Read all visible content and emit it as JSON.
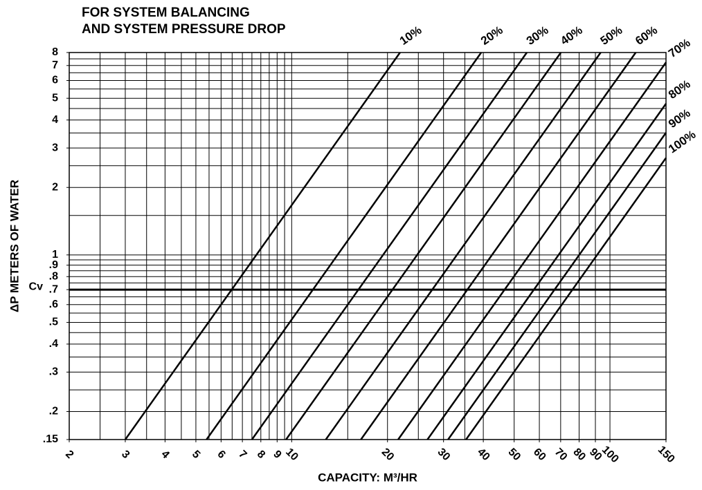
{
  "chart_data": {
    "type": "line",
    "title": [
      "FOR SYSTEM BALANCING",
      "AND SYSTEM PRESSURE DROP"
    ],
    "x_label": "CAPACITY: M³/HR",
    "y_label": "ΔP METERS OF WATER",
    "xscale": "log",
    "yscale": "log",
    "xlim": [
      2,
      150
    ],
    "ylim": [
      0.15,
      8
    ],
    "xticks": [
      2,
      3,
      4,
      5,
      6,
      7,
      8,
      9,
      10,
      20,
      30,
      40,
      50,
      60,
      70,
      80,
      90,
      100,
      150
    ],
    "yticks": [
      {
        "value": 0.15,
        "label": ".15"
      },
      {
        "value": 0.2,
        "label": ".2"
      },
      {
        "value": 0.3,
        "label": ".3"
      },
      {
        "value": 0.4,
        "label": ".4"
      },
      {
        "value": 0.5,
        "label": ".5"
      },
      {
        "value": 0.6,
        "label": ".6"
      },
      {
        "value": 0.7,
        "label": ".7"
      },
      {
        "value": 0.8,
        "label": ".8"
      },
      {
        "value": 0.9,
        "label": ".9"
      },
      1,
      2,
      3,
      4,
      5,
      6,
      7,
      8
    ],
    "xgrid": [
      2,
      2.5,
      3,
      3.5,
      4,
      4.5,
      5,
      5.5,
      6,
      6.5,
      7,
      7.5,
      8,
      8.5,
      9,
      9.5,
      10,
      15,
      20,
      25,
      30,
      35,
      40,
      50,
      60,
      70,
      80,
      90,
      100,
      150
    ],
    "ygrid": [
      0.15,
      0.2,
      0.25,
      0.3,
      0.35,
      0.4,
      0.45,
      0.5,
      0.55,
      0.6,
      0.65,
      0.7,
      0.75,
      0.8,
      0.85,
      0.9,
      0.95,
      1,
      1.5,
      2,
      2.5,
      3,
      3.5,
      4,
      4.5,
      5,
      5.5,
      6,
      6.5,
      7,
      7.5,
      8
    ],
    "reference_line": {
      "label": "Cv",
      "value": 0.7
    },
    "series": [
      {
        "name": "10%",
        "color": "#000000",
        "x": [
          3.0,
          21.9
        ],
        "values": [
          0.15,
          8
        ]
      },
      {
        "name": "20%",
        "color": "#000000",
        "x": [
          5.4,
          39.4
        ],
        "values": [
          0.15,
          8
        ]
      },
      {
        "name": "30%",
        "color": "#000000",
        "x": [
          7.5,
          54.8
        ],
        "values": [
          0.15,
          8
        ]
      },
      {
        "name": "40%",
        "color": "#000000",
        "x": [
          9.6,
          70.1
        ],
        "values": [
          0.15,
          8
        ]
      },
      {
        "name": "50%",
        "color": "#000000",
        "x": [
          12.8,
          93.5
        ],
        "values": [
          0.15,
          8
        ]
      },
      {
        "name": "60%",
        "color": "#000000",
        "x": [
          16.5,
          120.5
        ],
        "values": [
          0.15,
          8
        ]
      },
      {
        "name": "70%",
        "color": "#000000",
        "x": [
          21.6,
          150
        ],
        "values": [
          0.15,
          7.23
        ]
      },
      {
        "name": "80%",
        "color": "#000000",
        "x": [
          26.7,
          150
        ],
        "values": [
          0.15,
          4.73
        ]
      },
      {
        "name": "90%",
        "color": "#000000",
        "x": [
          31.0,
          150
        ],
        "values": [
          0.15,
          3.51
        ]
      },
      {
        "name": "100%",
        "color": "#000000",
        "x": [
          35.3,
          150
        ],
        "values": [
          0.15,
          2.71
        ]
      }
    ]
  }
}
